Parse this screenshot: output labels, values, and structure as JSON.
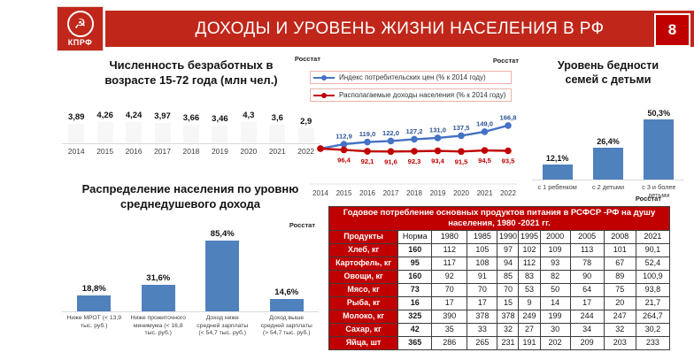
{
  "header": {
    "title": "ДОХОДЫ И УРОВЕНЬ ЖИЗНИ НАСЕЛЕНИЯ В РФ",
    "page_number": "8",
    "logo_text": "КПРФ",
    "logo_glyph": "☭"
  },
  "source_label": "Росстат",
  "colors": {
    "slide_red": "#c0271a",
    "table_red": "#c00000",
    "bar_blue": "#4f81bd",
    "line_blue": "#4472c4",
    "line_red": "#c00000"
  },
  "chart_data": [
    {
      "id": "unemployment",
      "type": "bar",
      "title": "Численность безработных в возрасте 15-72 года (млн чел.)",
      "source": "Росстат",
      "categories": [
        "2014",
        "2015",
        "2016",
        "2017",
        "2018",
        "2019",
        "2020",
        "2021",
        "2022"
      ],
      "values": [
        3.89,
        4.26,
        4.24,
        3.97,
        3.66,
        3.46,
        4.3,
        3.6,
        2.9
      ],
      "value_labels": [
        "3,89",
        "4,26",
        "4,24",
        "3,97",
        "3,66",
        "3,46",
        "4,3",
        "3,6",
        "2,9"
      ],
      "ylim": [
        0,
        4.5
      ],
      "grid": false,
      "note": "bars rendered nearly invisible in source slide"
    },
    {
      "id": "cpi_vs_income",
      "type": "line",
      "source": "Росстат",
      "x": [
        "2014",
        "2015",
        "2016",
        "2017",
        "2018",
        "2019",
        "2020",
        "2021",
        "2022"
      ],
      "series": [
        {
          "name": "Индекс потребительских цен (% к 2014 году)",
          "color": "#4472c4",
          "values": [
            100,
            112.9,
            119.0,
            122.0,
            127.2,
            131.0,
            137.5,
            149.0,
            166.8
          ],
          "labels": [
            "",
            "112,9",
            "119,0",
            "122,0",
            "127,2",
            "131,0",
            "137,5",
            "149,0",
            "166,8"
          ]
        },
        {
          "name": "Располагаемые доходы населения (% к 2014 году)",
          "color": "#c00000",
          "values": [
            100,
            96.4,
            92.1,
            91.6,
            92.3,
            93.4,
            91.5,
            94.5,
            93.5
          ],
          "labels": [
            "",
            "96,4",
            "92,1",
            "91,6",
            "92,3",
            "93,4",
            "91,5",
            "94,5",
            "93,5"
          ]
        }
      ],
      "ylim": [
        85,
        175
      ],
      "legend_position": "top",
      "grid": false
    },
    {
      "id": "poverty",
      "type": "bar",
      "title": "Уровень бедности семей с детьми",
      "categories": [
        "с 1 ребенком",
        "с 2 детьми",
        "с 3 и более детьми"
      ],
      "values": [
        12.1,
        26.4,
        50.3
      ],
      "value_labels": [
        "12,1%",
        "26,4%",
        "50,3%"
      ],
      "ylim": [
        0,
        55
      ],
      "grid": false
    },
    {
      "id": "income_distribution",
      "type": "bar",
      "title": "Распределение населения по уровню среднедушевого дохода",
      "source": "Росстат",
      "categories": [
        "Ниже МРОТ (< 13,9 тыс. руб.)",
        "Ниже прожиточного минимума (< 16,8 тыс. руб.)",
        "Доход ниже средней зарплаты (< 54,7 тыс. руб.)",
        "Доход выше средней зарплаты (> 54,7 тыс. руб.)"
      ],
      "values": [
        18.8,
        31.6,
        85.4,
        14.6
      ],
      "value_labels": [
        "18,8%",
        "31,6%",
        "85,4%",
        "14,6%"
      ],
      "ylim": [
        0,
        90
      ],
      "grid": false
    },
    {
      "id": "food_consumption",
      "type": "table",
      "title": "Годовое потребление основных продуктов питания в РСФСР  -РФ на душу населения, 1980 -2021 гг.",
      "source": "Росстат",
      "columns": [
        "Продукты",
        "Норма",
        "1980",
        "1985",
        "1990",
        "1995",
        "2000",
        "2005",
        "2008",
        "2021"
      ],
      "rows": [
        [
          "Хлеб, кг",
          "160",
          "112",
          "105",
          "97",
          "102",
          "109",
          "113",
          "101",
          "90,1"
        ],
        [
          "Картофель, кг",
          "95",
          "117",
          "108",
          "94",
          "112",
          "93",
          "78",
          "67",
          "52,4"
        ],
        [
          "Овощи, кг",
          "160",
          "92",
          "91",
          "85",
          "83",
          "82",
          "90",
          "89",
          "100,9"
        ],
        [
          "Мясо, кг",
          "73",
          "70",
          "70",
          "70",
          "53",
          "50",
          "64",
          "75",
          "93,8"
        ],
        [
          "Рыба, кг",
          "16",
          "17",
          "17",
          "15",
          "9",
          "14",
          "17",
          "20",
          "21,7"
        ],
        [
          "Молоко, кг",
          "325",
          "390",
          "378",
          "378",
          "249",
          "199",
          "244",
          "247",
          "264,7"
        ],
        [
          "Сахар, кг",
          "42",
          "35",
          "33",
          "32",
          "27",
          "30",
          "34",
          "32",
          "30,2"
        ],
        [
          "Яйца, шт",
          "365",
          "286",
          "265",
          "231",
          "191",
          "202",
          "209",
          "203",
          "233"
        ]
      ]
    }
  ]
}
